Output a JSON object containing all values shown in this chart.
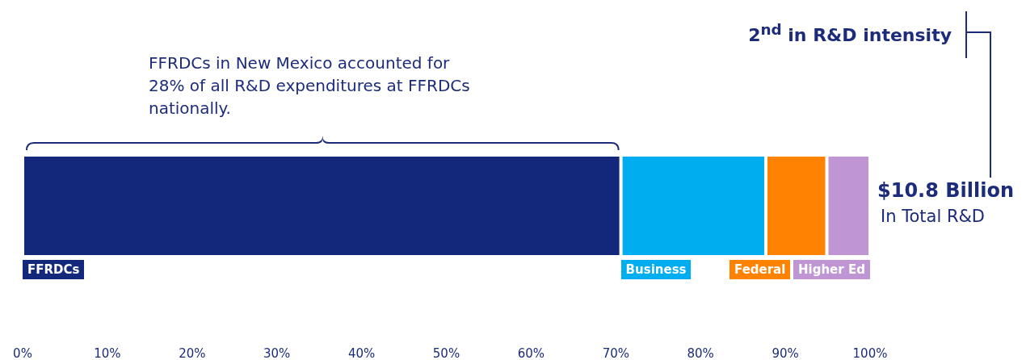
{
  "chart_data": {
    "type": "bar",
    "orientation": "horizontal",
    "stacked": true,
    "categories": [
      null
    ],
    "series": [
      {
        "name": "FFRDCs",
        "color": "#13287a",
        "values": [
          70.6
        ]
      },
      {
        "name": "Business",
        "color": "#00adee",
        "values": [
          17.1
        ]
      },
      {
        "name": "Federal",
        "color": "#ff8200",
        "values": [
          7.2
        ]
      },
      {
        "name": "Higher Ed",
        "color": "#bf95d4",
        "values": [
          5.1
        ]
      }
    ],
    "xlim": [
      0,
      100
    ],
    "xticks": [
      {
        "value": 0,
        "label": "0%"
      },
      {
        "value": 10,
        "label": "10%"
      },
      {
        "value": 20,
        "label": "20%"
      },
      {
        "value": 30,
        "label": "30%"
      },
      {
        "value": 40,
        "label": "40%"
      },
      {
        "value": 50,
        "label": "50%"
      },
      {
        "value": 60,
        "label": "60%"
      },
      {
        "value": 70,
        "label": "70%"
      },
      {
        "value": 80,
        "label": "80%"
      },
      {
        "value": 90,
        "label": "90%"
      },
      {
        "value": 100,
        "label": "100%"
      }
    ],
    "grid": false,
    "legend": false,
    "annotations": [
      "FFRDCs in New Mexico accounted for 28% of all R&D expenditures at FFRDCs nationally.",
      "2$^{nd}$ in R&D intensity",
      "$10.8 Billion",
      "In Total R&D"
    ]
  }
}
